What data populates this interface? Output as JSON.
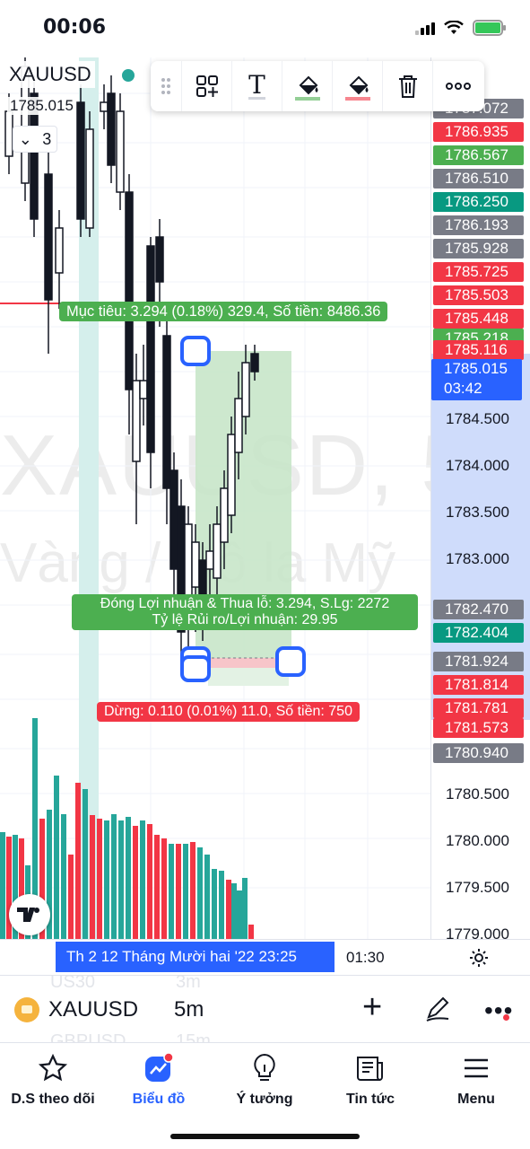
{
  "status": {
    "time": "00:06"
  },
  "chart": {
    "symbol": "XAUUSD",
    "last_price": "1785.015",
    "indicator_count": "3",
    "watermark_line1": "XAUUSD, 5",
    "watermark_line2": "Vàng / Đô la Mỹ",
    "current_price_tag": {
      "price": "1785.015",
      "countdown": "03:42"
    },
    "colors": {
      "up": "#26a69a",
      "down": "#f23645",
      "accent": "#2962ff",
      "profit_zone": "#c8e6c9",
      "loss_zone": "#f7c5c9",
      "target_label": "#4caf50",
      "stop_label": "#f23645"
    },
    "price_scale_ticks": [
      "1784.500",
      "1784.000",
      "1783.500",
      "1783.000",
      "1780.500",
      "1780.000",
      "1779.500",
      "1779.000"
    ],
    "price_tags": [
      {
        "value": "1787.072",
        "color": "#787b86"
      },
      {
        "value": "1786.935",
        "color": "#f23645"
      },
      {
        "value": "1786.567",
        "color": "#4caf50"
      },
      {
        "value": "1786.510",
        "color": "#787b86"
      },
      {
        "value": "1786.250",
        "color": "#089981"
      },
      {
        "value": "1786.193",
        "color": "#787b86"
      },
      {
        "value": "1785.928",
        "color": "#787b86"
      },
      {
        "value": "1785.725",
        "color": "#f23645"
      },
      {
        "value": "1785.503",
        "color": "#f23645"
      },
      {
        "value": "1785.448",
        "color": "#f23645"
      },
      {
        "value": "1785.218",
        "color": "#4caf50"
      },
      {
        "value": "1785.116",
        "color": "#f23645"
      },
      {
        "value": "1782.470",
        "color": "#787b86"
      },
      {
        "value": "1782.404",
        "color": "#089981"
      },
      {
        "value": "1781.924",
        "color": "#787b86"
      },
      {
        "value": "1781.814",
        "color": "#f23645"
      },
      {
        "value": "1781.781",
        "color": "#f23645"
      },
      {
        "value": "1781.573",
        "color": "#f23645"
      },
      {
        "value": "1780.940",
        "color": "#787b86"
      }
    ],
    "position": {
      "target_label": "Mục tiêu: 3.294 (0.18%) 329.4, Số tiền: 8486.36",
      "pnl_line1": "Đóng Lợi nhuận & Thua lỗ: 3.294, S.Lg: 2272",
      "pnl_line2": "Tỷ lệ Rủi ro/Lợi nhuận: 29.95",
      "stop_label": "Dừng: 0.110 (0.01%) 11.0, Số tiền: 750"
    },
    "time_axis": {
      "crosshair_time": "Th 2 12 Tháng Mười hai '22   23:25",
      "tick": "01:30"
    }
  },
  "toolbar": {
    "icons": [
      "drag-handle-icon",
      "add-object-icon",
      "text-icon",
      "fill-profit-color-icon",
      "fill-loss-color-icon",
      "trash-icon",
      "more-icon"
    ]
  },
  "symbol_bar": {
    "symbol": "XAUUSD",
    "interval": "5m",
    "ghost_rows": [
      {
        "symbol": "US30",
        "interval": "3m"
      },
      {
        "symbol": "GBPUSD",
        "interval": "15m"
      }
    ]
  },
  "nav": {
    "items": [
      {
        "label": "D.S theo dõi",
        "icon": "star-icon"
      },
      {
        "label": "Biểu đồ",
        "icon": "chart-icon",
        "active": true
      },
      {
        "label": "Ý tưởng",
        "icon": "lightbulb-icon"
      },
      {
        "label": "Tin tức",
        "icon": "newspaper-icon"
      },
      {
        "label": "Menu",
        "icon": "hamburger-menu-icon"
      }
    ]
  }
}
